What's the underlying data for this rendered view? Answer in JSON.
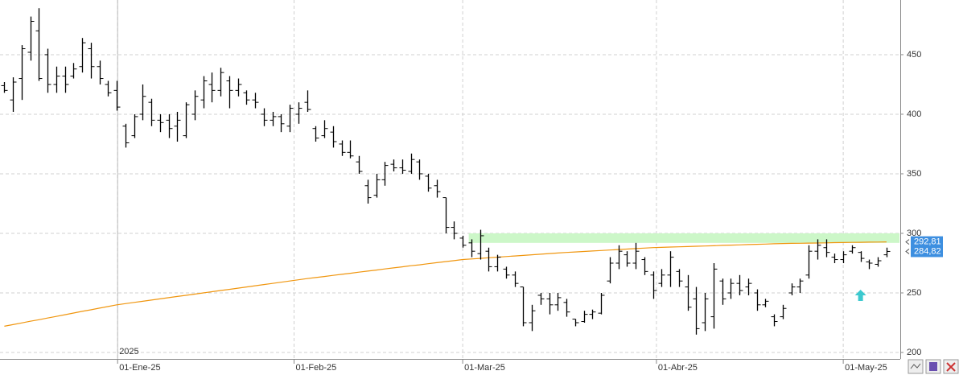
{
  "chart_data": {
    "type": "ohlc",
    "x": [
      0,
      1,
      2,
      3,
      4,
      5,
      6,
      7,
      8,
      9,
      10,
      11,
      12,
      13,
      14,
      15,
      16,
      17,
      18,
      19,
      20,
      21,
      22,
      23,
      24,
      25,
      26,
      27,
      28,
      29,
      30,
      31,
      32,
      33,
      34,
      35,
      36,
      37,
      38,
      39,
      40,
      41,
      42,
      43,
      44,
      45,
      46,
      47,
      48,
      49,
      50,
      51,
      52,
      53,
      54,
      55,
      56,
      57,
      58,
      59,
      60,
      61,
      62,
      63,
      64,
      65,
      66,
      67,
      68,
      69,
      70,
      71,
      72,
      73,
      74,
      75,
      76,
      77,
      78,
      79,
      80,
      81,
      82,
      83,
      84,
      85,
      86,
      87,
      88,
      89,
      90,
      91,
      92,
      93,
      94,
      95,
      96,
      97,
      98,
      99,
      100,
      101,
      102
    ],
    "open": [
      424,
      412,
      430,
      452,
      470,
      450,
      425,
      432,
      432,
      440,
      455,
      440,
      425,
      420,
      390,
      382,
      400,
      410,
      395,
      395,
      390,
      382,
      400,
      412,
      425,
      420,
      428,
      420,
      418,
      412,
      400,
      395,
      398,
      390,
      400,
      410,
      388,
      382,
      385,
      375,
      368,
      360,
      340,
      332,
      345,
      358,
      355,
      352,
      360,
      348,
      340,
      330,
      305,
      296,
      292,
      283,
      285,
      272,
      270,
      265,
      255,
      225,
      248,
      245,
      240,
      242,
      228,
      226,
      232,
      233,
      260,
      275,
      282,
      275,
      278,
      265,
      258,
      265,
      268,
      255,
      245,
      225,
      230,
      260,
      250,
      258,
      255,
      250,
      240,
      230,
      230,
      250,
      255,
      265,
      285,
      288,
      280,
      278,
      285,
      284,
      276,
      274,
      282
    ],
    "high": [
      427,
      431,
      458,
      482,
      489,
      455,
      440,
      440,
      443,
      464,
      460,
      445,
      428,
      428,
      392,
      400,
      425,
      413,
      400,
      400,
      402,
      410,
      420,
      432,
      435,
      439,
      432,
      430,
      420,
      418,
      405,
      402,
      400,
      408,
      410,
      420,
      390,
      395,
      390,
      378,
      378,
      365,
      345,
      350,
      360,
      362,
      362,
      367,
      362,
      350,
      345,
      330,
      310,
      298,
      295,
      303,
      288,
      282,
      272,
      268,
      255,
      240,
      250,
      250,
      250,
      245,
      228,
      235,
      236,
      250,
      280,
      290,
      285,
      292,
      280,
      268,
      270,
      285,
      270,
      265,
      255,
      250,
      275,
      262,
      262,
      265,
      262,
      253,
      245,
      232,
      240,
      258,
      262,
      290,
      295,
      295,
      283,
      285,
      290,
      285,
      278,
      280,
      288
    ],
    "low": [
      418,
      402,
      412,
      445,
      428,
      418,
      418,
      418,
      430,
      435,
      430,
      425,
      415,
      403,
      372,
      380,
      395,
      390,
      385,
      380,
      377,
      380,
      395,
      405,
      410,
      415,
      405,
      415,
      408,
      405,
      390,
      390,
      385,
      385,
      392,
      402,
      377,
      380,
      372,
      365,
      363,
      350,
      325,
      330,
      340,
      352,
      350,
      350,
      345,
      335,
      330,
      300,
      295,
      288,
      280,
      278,
      268,
      268,
      262,
      255,
      222,
      218,
      240,
      232,
      235,
      230,
      222,
      225,
      228,
      232,
      258,
      270,
      272,
      270,
      265,
      245,
      255,
      255,
      255,
      235,
      215,
      218,
      220,
      240,
      245,
      248,
      248,
      235,
      238,
      222,
      228,
      248,
      250,
      262,
      278,
      280,
      275,
      275,
      283,
      276,
      270,
      272,
      280
    ],
    "close": [
      420,
      427,
      455,
      478,
      430,
      425,
      432,
      425,
      438,
      460,
      440,
      430,
      418,
      406,
      376,
      398,
      415,
      395,
      393,
      388,
      395,
      408,
      415,
      428,
      420,
      435,
      420,
      425,
      412,
      410,
      395,
      398,
      392,
      405,
      405,
      404,
      380,
      388,
      377,
      368,
      365,
      352,
      330,
      345,
      357,
      355,
      353,
      362,
      350,
      338,
      335,
      305,
      300,
      290,
      285,
      298,
      272,
      280,
      265,
      258,
      225,
      235,
      245,
      240,
      246,
      234,
      225,
      232,
      234,
      248,
      275,
      285,
      275,
      285,
      268,
      252,
      265,
      280,
      260,
      238,
      220,
      245,
      270,
      245,
      258,
      252,
      258,
      240,
      243,
      226,
      237,
      255,
      260,
      285,
      290,
      284,
      278,
      282,
      288,
      279,
      275,
      277,
      284.82
    ],
    "color": "#000000",
    "ma": {
      "color": "#f0960f",
      "values": [
        222,
        223.4,
        224.8,
        226.2,
        227.5,
        228.9,
        230.3,
        231.7,
        233.1,
        234.5,
        235.8,
        237.2,
        238.6,
        240,
        241,
        242,
        243,
        244,
        245,
        246,
        247,
        248,
        249,
        250,
        251,
        252,
        253,
        254,
        255,
        256,
        257,
        258,
        259,
        260,
        261,
        262,
        262.9,
        263.8,
        264.7,
        265.6,
        266.5,
        267.4,
        268.3,
        269.2,
        270.1,
        271,
        271.9,
        272.8,
        273.6,
        274.5,
        275.4,
        276.3,
        277.1,
        278,
        278.5,
        279,
        279.5,
        280,
        280.5,
        281,
        281.5,
        282,
        282.5,
        283,
        283.5,
        284,
        284.4,
        284.8,
        285.2,
        285.6,
        286,
        286.4,
        286.8,
        287.2,
        287.6,
        288,
        288.2,
        288.5,
        288.7,
        288.9,
        289.2,
        289.4,
        289.6,
        289.9,
        290.1,
        290.3,
        290.6,
        290.8,
        291,
        291.3,
        291.5,
        291.6,
        291.7,
        291.8,
        291.9,
        292,
        292.2,
        292.3,
        292.4,
        292.5,
        292.6,
        292.7,
        292.81
      ]
    },
    "last_labels": [
      {
        "value": 292.81,
        "label": "292,81"
      },
      {
        "value": 284.82,
        "label": "284,82"
      }
    ],
    "band": {
      "y": [
        292,
        300
      ],
      "x": [
        53.7,
        103.5
      ],
      "color": "#ccf7c8"
    },
    "markers": [
      {
        "x": 99,
        "y": 248,
        "color": "#3cc9cf"
      }
    ],
    "year_divider": {
      "x": 13.1,
      "label": "2025"
    },
    "xlim": [
      -0.5,
      103.5
    ],
    "ylim": [
      194.6,
      495.9
    ],
    "xticks": [
      {
        "value": 13.1,
        "label": "01-Ene-25"
      },
      {
        "value": 33.5,
        "label": "01-Feb-25"
      },
      {
        "value": 53,
        "label": "01-Mar-25"
      },
      {
        "value": 75.4,
        "label": "01-Abr-25"
      },
      {
        "value": 97,
        "label": "01-May-25"
      }
    ],
    "yticks": [
      200,
      250,
      300,
      350,
      400,
      450
    ],
    "grid": true
  }
}
